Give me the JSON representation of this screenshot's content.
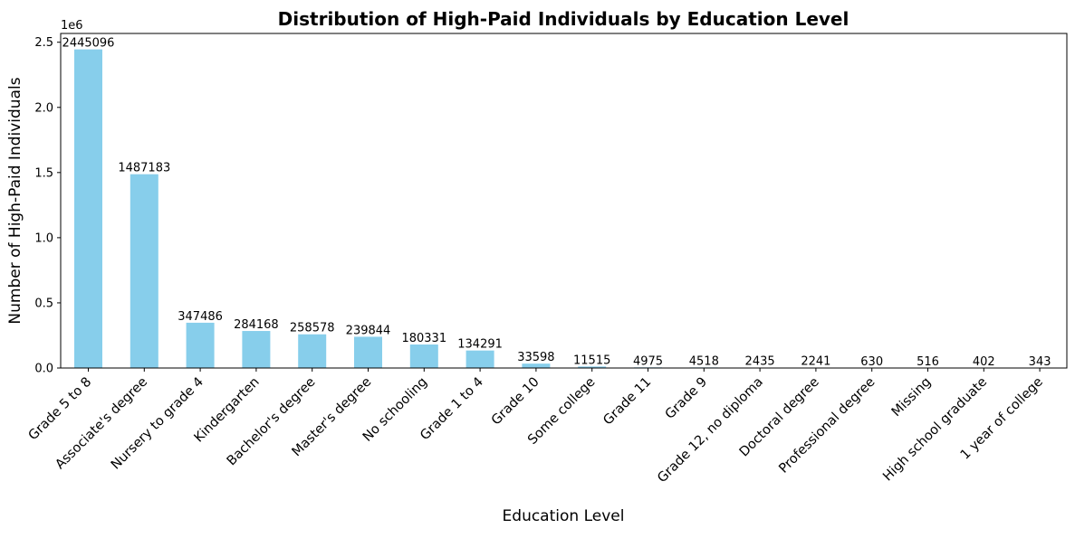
{
  "chart_data": {
    "type": "bar",
    "title": "Distribution of High-Paid Individuals by Education Level",
    "xlabel": "Education Level",
    "ylabel": "Number of High-Paid Individuals",
    "y_scale_multiplier": "1e6",
    "ylim": [
      0,
      2567350
    ],
    "yticks": [
      0,
      500000,
      1000000,
      1500000,
      2000000,
      2500000
    ],
    "ytick_labels": [
      "0.0",
      "0.5",
      "1.0",
      "1.5",
      "2.0",
      "2.5"
    ],
    "bar_color": "#87ceeb",
    "grid": false,
    "legend": "none",
    "categories": [
      "Grade 5 to 8",
      "Associate's degree",
      "Nursery to grade 4",
      "Kindergarten",
      "Bachelor's degree",
      "Master's degree",
      "No schooling",
      "Grade 1 to 4",
      "Grade 10",
      "Some college",
      "Grade 11",
      "Grade 9",
      "Grade 12, no diploma",
      "Doctoral degree",
      "Professional degree",
      "Missing",
      "High school graduate",
      "1 year of college"
    ],
    "values": [
      2445096,
      1487183,
      347486,
      284168,
      258578,
      239844,
      180331,
      134291,
      33598,
      11515,
      4975,
      4518,
      2435,
      2241,
      630,
      516,
      402,
      343
    ]
  }
}
